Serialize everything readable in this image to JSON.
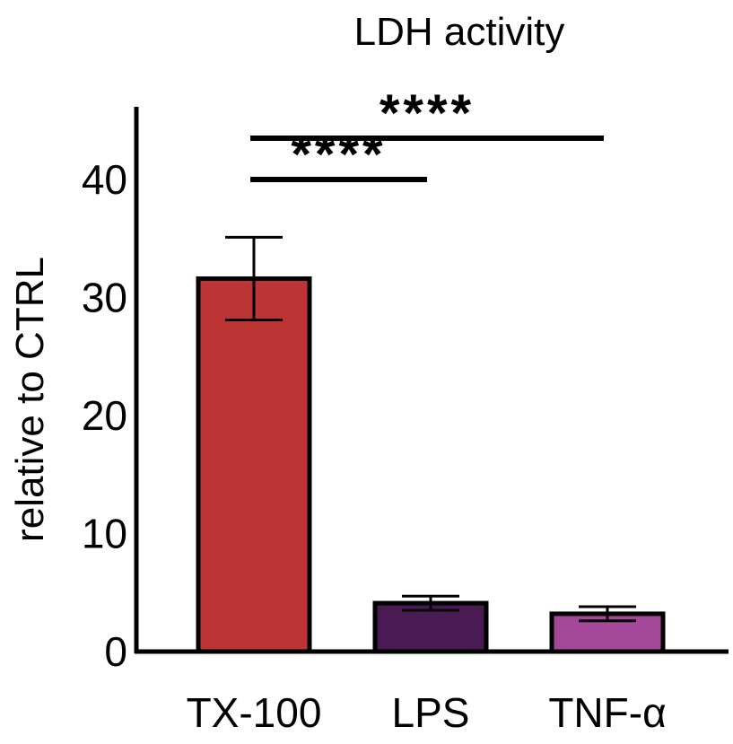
{
  "chart_data": {
    "type": "bar",
    "title": "LDH activity",
    "xlabel": "",
    "ylabel": "relative to CTRL",
    "ylim": [
      0,
      45
    ],
    "yticks": [
      0,
      10,
      20,
      30,
      40
    ],
    "ytick_labels": [
      "0",
      "10",
      "20",
      "30",
      "40"
    ],
    "categories": [
      "TX-100",
      "LPS",
      "TNF-α"
    ],
    "values": [
      31.6,
      4.1,
      3.2
    ],
    "errors": [
      3.5,
      0.6,
      0.6
    ],
    "colors": [
      "#bc3434",
      "#4a1a52",
      "#a6489a"
    ],
    "significance": [
      {
        "from": 0,
        "to": 1,
        "label": "****",
        "level": 40
      },
      {
        "from": 0,
        "to": 2,
        "label": "****",
        "level": 43.5
      }
    ]
  }
}
